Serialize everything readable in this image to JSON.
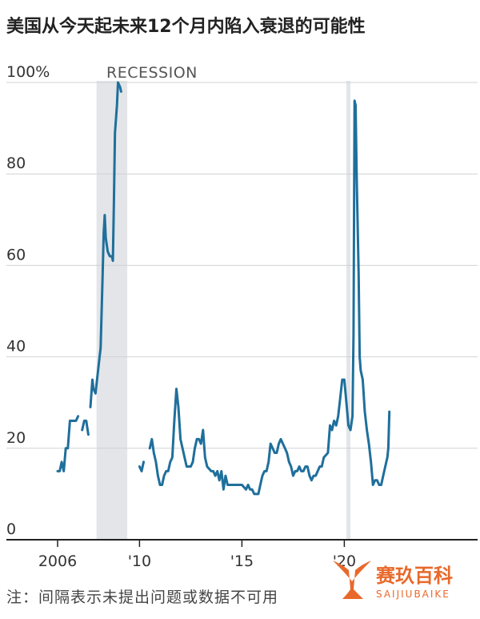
{
  "chart_data": {
    "type": "line",
    "title": "美国从今天起未来12个月内陷入衰退的可能性",
    "y_tick_labels": [
      "100%",
      "80",
      "60",
      "40",
      "20",
      "0"
    ],
    "ylim": [
      0,
      100
    ],
    "x_tick_labels": [
      "2006",
      "'10",
      "'15",
      "'20"
    ],
    "xlim": [
      2006,
      2022.2
    ],
    "grid": "horizontal",
    "recession_label": "RECESSION",
    "recession_periods": [
      [
        2007.9,
        2009.4
      ],
      [
        2020.1,
        2020.3
      ]
    ],
    "note": "注：间隔表示未提出问题或数据不可用",
    "series": [
      {
        "color": "#1f6f9c",
        "segments": [
          [
            [
              2006.0,
              15
            ],
            [
              2006.1,
              15
            ],
            [
              2006.2,
              17
            ],
            [
              2006.3,
              15
            ],
            [
              2006.4,
              20
            ],
            [
              2006.5,
              20
            ],
            [
              2006.6,
              26
            ],
            [
              2006.75,
              26
            ],
            [
              2006.9,
              26
            ],
            [
              2007.0,
              27
            ]
          ],
          [
            [
              2007.2,
              24
            ],
            [
              2007.3,
              26
            ],
            [
              2007.4,
              26
            ],
            [
              2007.5,
              23
            ]
          ],
          [
            [
              2007.6,
              29
            ],
            [
              2007.7,
              35
            ],
            [
              2007.75,
              33
            ],
            [
              2007.85,
              32
            ],
            [
              2008.0,
              38
            ],
            [
              2008.1,
              42
            ],
            [
              2008.2,
              58
            ],
            [
              2008.25,
              67
            ],
            [
              2008.3,
              71
            ],
            [
              2008.35,
              66
            ],
            [
              2008.45,
              63
            ],
            [
              2008.55,
              62
            ],
            [
              2008.65,
              62
            ],
            [
              2008.7,
              61
            ],
            [
              2008.75,
              74
            ],
            [
              2008.8,
              89
            ],
            [
              2008.9,
              95
            ],
            [
              2008.95,
              100
            ],
            [
              2009.05,
              99
            ],
            [
              2009.1,
              98
            ]
          ],
          [
            [
              2010.0,
              16
            ],
            [
              2010.1,
              15
            ],
            [
              2010.2,
              17
            ]
          ],
          [
            [
              2010.5,
              20
            ],
            [
              2010.6,
              22
            ],
            [
              2010.7,
              19
            ],
            [
              2010.8,
              17
            ],
            [
              2010.9,
              14
            ],
            [
              2011.0,
              12
            ],
            [
              2011.1,
              12
            ],
            [
              2011.2,
              14
            ],
            [
              2011.3,
              15
            ],
            [
              2011.4,
              15
            ],
            [
              2011.5,
              17
            ],
            [
              2011.6,
              18
            ],
            [
              2011.7,
              26
            ],
            [
              2011.8,
              33
            ],
            [
              2011.9,
              29
            ],
            [
              2012.0,
              22
            ],
            [
              2012.2,
              18
            ],
            [
              2012.3,
              16
            ],
            [
              2012.5,
              16
            ],
            [
              2012.6,
              17
            ],
            [
              2012.7,
              20
            ],
            [
              2012.8,
              22
            ],
            [
              2012.9,
              22
            ],
            [
              2013.0,
              21
            ],
            [
              2013.1,
              24
            ],
            [
              2013.2,
              18
            ],
            [
              2013.3,
              16
            ],
            [
              2013.5,
              15
            ],
            [
              2013.6,
              15
            ],
            [
              2013.7,
              14
            ],
            [
              2013.8,
              15
            ],
            [
              2013.9,
              13
            ],
            [
              2014.0,
              15
            ],
            [
              2014.1,
              11
            ],
            [
              2014.2,
              14
            ],
            [
              2014.3,
              12
            ],
            [
              2014.4,
              12
            ],
            [
              2014.6,
              12
            ],
            [
              2014.8,
              12
            ],
            [
              2015.0,
              12
            ],
            [
              2015.2,
              11
            ],
            [
              2015.3,
              12
            ],
            [
              2015.4,
              11
            ],
            [
              2015.5,
              11
            ],
            [
              2015.6,
              10
            ],
            [
              2015.7,
              10
            ],
            [
              2015.8,
              10
            ],
            [
              2015.9,
              12
            ],
            [
              2016.0,
              14
            ],
            [
              2016.1,
              15
            ],
            [
              2016.2,
              15
            ],
            [
              2016.3,
              17
            ],
            [
              2016.4,
              21
            ],
            [
              2016.5,
              20
            ],
            [
              2016.6,
              19
            ],
            [
              2016.7,
              19
            ],
            [
              2016.8,
              21
            ],
            [
              2016.9,
              22
            ],
            [
              2017.0,
              21
            ],
            [
              2017.1,
              20
            ],
            [
              2017.2,
              19
            ],
            [
              2017.3,
              17
            ],
            [
              2017.4,
              16
            ],
            [
              2017.5,
              14
            ],
            [
              2017.6,
              15
            ],
            [
              2017.7,
              15
            ],
            [
              2017.8,
              16
            ],
            [
              2017.9,
              15
            ],
            [
              2018.0,
              15
            ],
            [
              2018.1,
              16
            ],
            [
              2018.2,
              16
            ],
            [
              2018.3,
              14
            ],
            [
              2018.4,
              13
            ],
            [
              2018.5,
              14
            ],
            [
              2018.6,
              14
            ],
            [
              2018.7,
              15
            ],
            [
              2018.8,
              16
            ],
            [
              2018.9,
              16
            ],
            [
              2019.0,
              18
            ],
            [
              2019.2,
              19
            ],
            [
              2019.3,
              25
            ],
            [
              2019.4,
              24
            ],
            [
              2019.5,
              26
            ],
            [
              2019.6,
              25
            ],
            [
              2019.7,
              27
            ],
            [
              2019.8,
              31
            ],
            [
              2019.9,
              35
            ],
            [
              2020.0,
              35
            ],
            [
              2020.1,
              30
            ],
            [
              2020.2,
              25
            ],
            [
              2020.3,
              24
            ],
            [
              2020.4,
              27
            ],
            [
              2020.45,
              45
            ],
            [
              2020.5,
              96
            ],
            [
              2020.55,
              95
            ],
            [
              2020.6,
              80
            ],
            [
              2020.7,
              58
            ],
            [
              2020.75,
              40
            ],
            [
              2020.8,
              37
            ],
            [
              2020.9,
              35
            ],
            [
              2021.0,
              28
            ],
            [
              2021.1,
              24
            ],
            [
              2021.2,
              21
            ],
            [
              2021.3,
              17
            ],
            [
              2021.4,
              12
            ],
            [
              2021.5,
              13
            ],
            [
              2021.6,
              13
            ],
            [
              2021.7,
              12
            ],
            [
              2021.8,
              12
            ],
            [
              2021.9,
              14
            ],
            [
              2022.0,
              16
            ],
            [
              2022.1,
              18
            ],
            [
              2022.15,
              20
            ],
            [
              2022.2,
              28
            ]
          ]
        ]
      }
    ]
  },
  "watermark": {
    "brand_cn": "赛玖百科",
    "brand_en": "SAIJIUBAIKE",
    "color": "#e8692b"
  }
}
